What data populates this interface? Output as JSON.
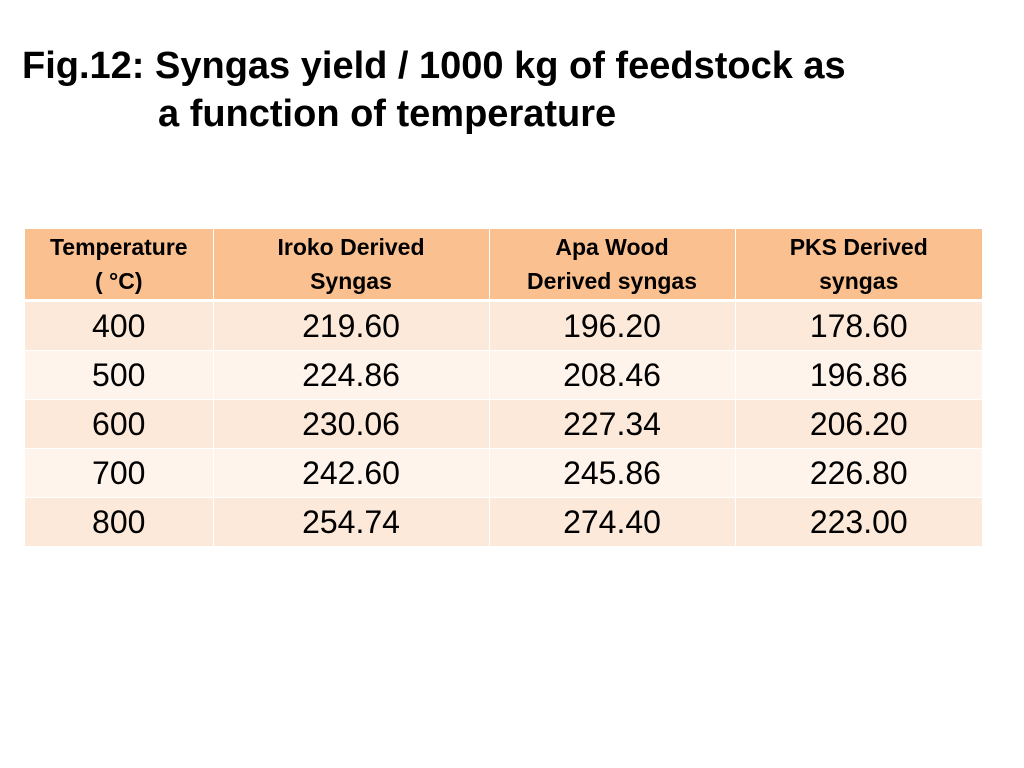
{
  "title": {
    "line1": "Fig.12: Syngas yield / 1000 kg of feedstock as",
    "line2": "a function of temperature"
  },
  "table": {
    "headers": [
      [
        "Temperature",
        "( °C)"
      ],
      [
        "Iroko Derived",
        "Syngas"
      ],
      [
        "Apa Wood",
        "Derived syngas"
      ],
      [
        "PKS Derived",
        "syngas"
      ]
    ],
    "rows": [
      [
        "400",
        "219.60",
        "196.20",
        "178.60"
      ],
      [
        "500",
        "224.86",
        "208.46",
        "196.86"
      ],
      [
        "600",
        "230.06",
        "227.34",
        "206.20"
      ],
      [
        "700",
        "242.60",
        "245.86",
        "226.80"
      ],
      [
        "800",
        "254.74",
        "274.40",
        "223.00"
      ]
    ]
  },
  "colors": {
    "header_bg": "#fac090",
    "row_odd_bg": "#fde9d9",
    "row_even_bg": "#fef4ec"
  }
}
